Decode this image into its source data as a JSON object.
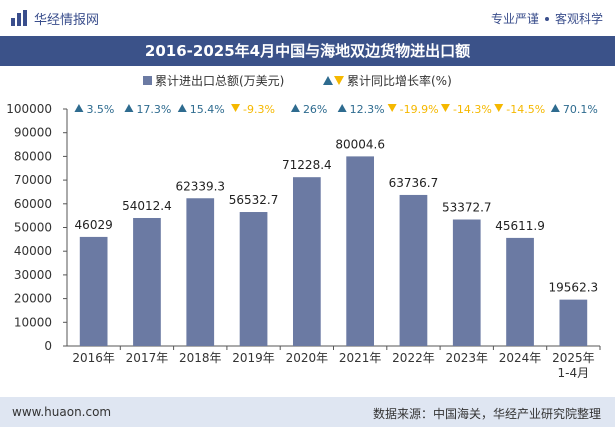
{
  "header": {
    "brand": "华经情报网",
    "tag1": "专业严谨",
    "tag2": "客观科学"
  },
  "footer": {
    "website": "www.huaon.com",
    "source": "数据来源：中国海关，华经产业研究院整理"
  },
  "colors": {
    "bar": "#6b7aa3",
    "growth_up": "#2e6b8f",
    "growth_down": "#f5b800",
    "title_bg": "#3b5289",
    "footer_bg": "#dfe6f2"
  },
  "chart_data": {
    "type": "bar",
    "title": "2016-2025年4月中国与海地双边货物进出口额",
    "categories": [
      "2016年",
      "2017年",
      "2018年",
      "2019年",
      "2020年",
      "2021年",
      "2022年",
      "2023年",
      "2024年",
      "2025年\n1-4月"
    ],
    "series": [
      {
        "name": "累计进出口总额(万美元)",
        "values": [
          46029,
          54012.4,
          62339.3,
          56532.7,
          71228.4,
          80004.6,
          63736.7,
          53372.7,
          45611.9,
          19562.3
        ],
        "labels": [
          "46029",
          "54012.4",
          "62339.3",
          "56532.7",
          "71228.4",
          "80004.6",
          "63736.7",
          "53372.7",
          "45611.9",
          "19562.3"
        ]
      },
      {
        "name": "累计同比增长率(%)",
        "values": [
          3.5,
          17.3,
          15.4,
          -9.3,
          26,
          12.3,
          -19.9,
          -14.3,
          -14.5,
          70.1
        ],
        "labels": [
          "3.5%",
          "17.3%",
          "15.4%",
          "-9.3%",
          "26%",
          "12.3%",
          "-19.9%",
          "-14.3%",
          "-14.5%",
          "70.1%"
        ]
      }
    ],
    "ylim": [
      0,
      100000
    ],
    "yticks": [
      0,
      10000,
      20000,
      30000,
      40000,
      50000,
      60000,
      70000,
      80000,
      90000,
      100000
    ],
    "legend_position": "top-center",
    "grid": false
  }
}
